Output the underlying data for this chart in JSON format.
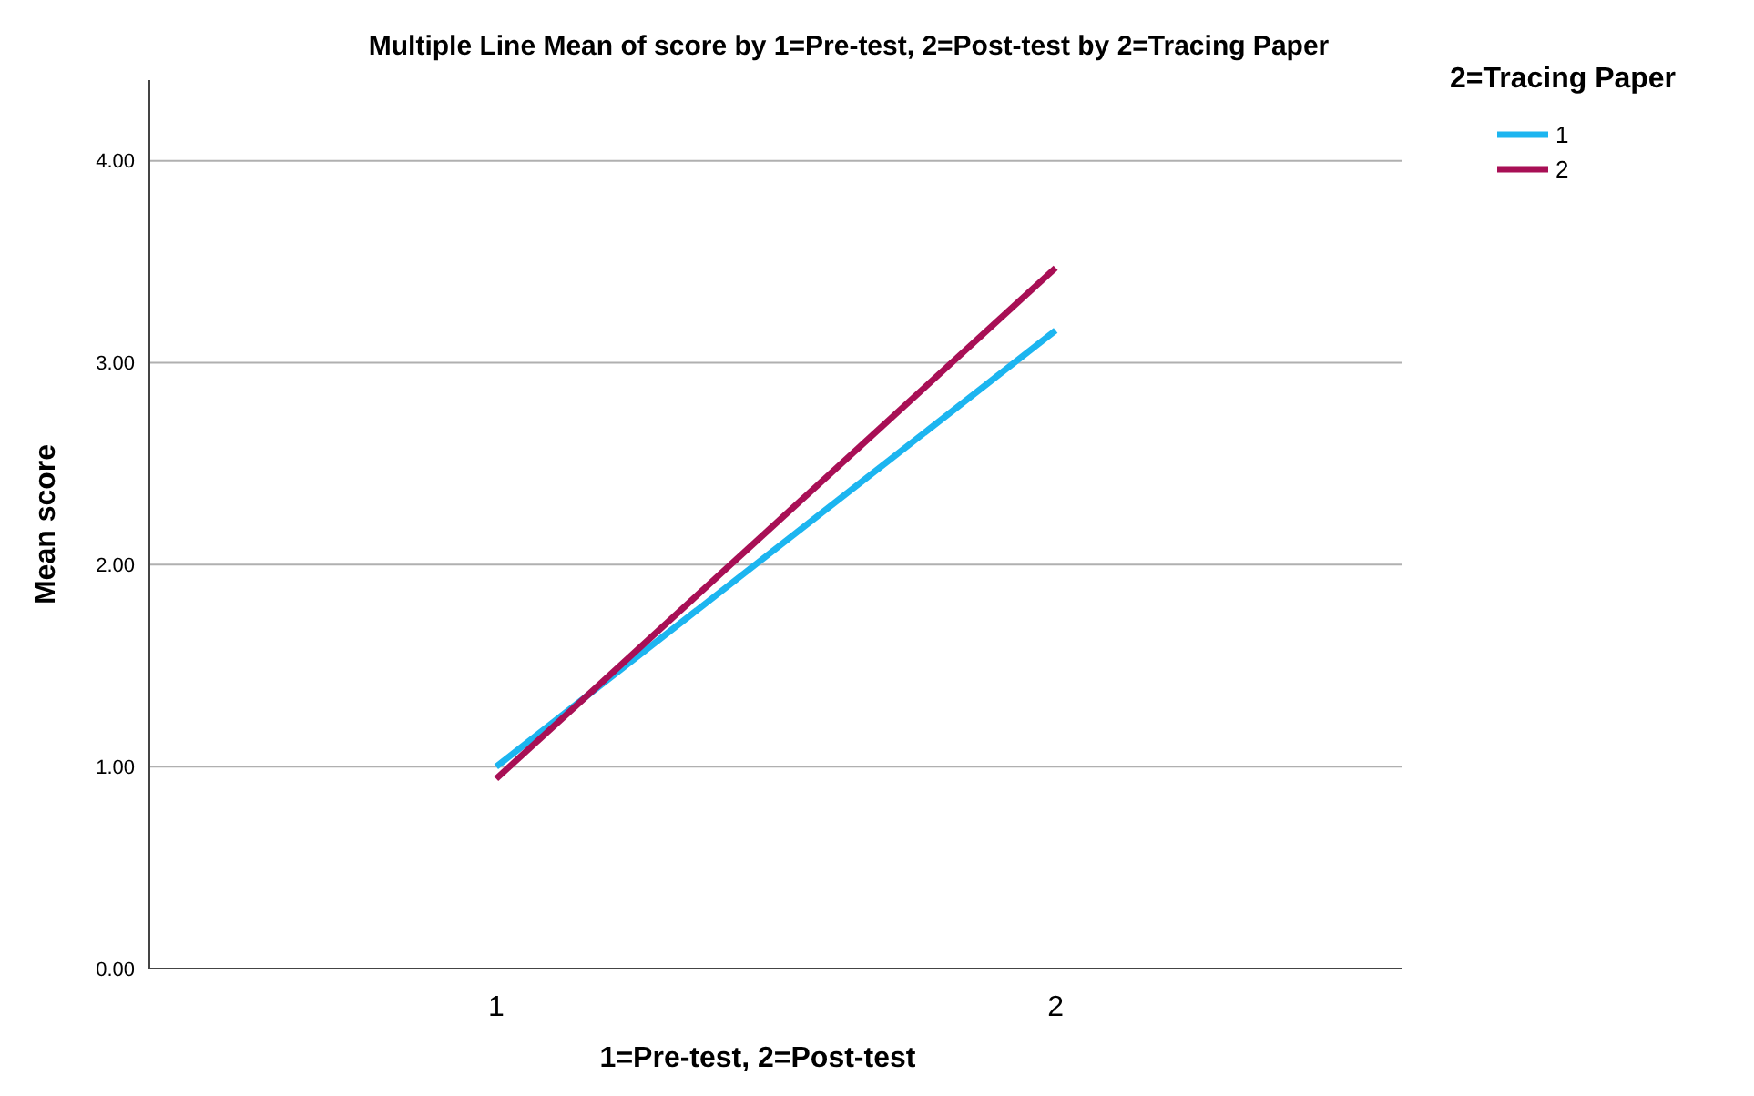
{
  "chart_data": {
    "type": "line",
    "title": "Multiple Line Mean of score by 1=Pre-test, 2=Post-test by 2=Tracing Paper",
    "xlabel": "1=Pre-test, 2=Post-test",
    "ylabel": "Mean score",
    "legend_title": "2=Tracing Paper",
    "categories": [
      "1",
      "2"
    ],
    "series": [
      {
        "name": "1",
        "color": "#1cb5f0",
        "values": [
          1.0,
          3.16
        ]
      },
      {
        "name": "2",
        "color": "#a80f55",
        "values": [
          0.94,
          3.47
        ]
      }
    ],
    "ylim": [
      0,
      4.4
    ],
    "yticks": [
      {
        "value": 0,
        "label": "0.00"
      },
      {
        "value": 1,
        "label": "1.00"
      },
      {
        "value": 2,
        "label": "2.00"
      },
      {
        "value": 3,
        "label": "3.00"
      },
      {
        "value": 4,
        "label": "4.00"
      }
    ],
    "grid": "y",
    "legend": "top right",
    "marker": "none",
    "line_style": "solid"
  }
}
